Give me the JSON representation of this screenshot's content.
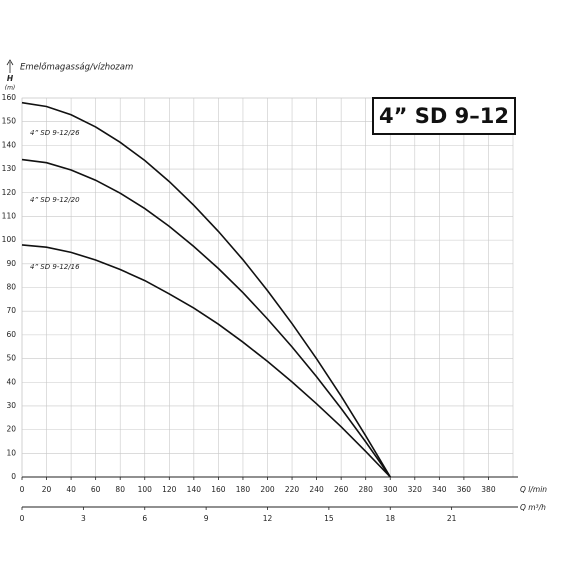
{
  "chart_data": {
    "type": "line",
    "title": "4” SD 9–12",
    "y_axis_label": "Emelőmagasság/vízhozam",
    "y_symbol": "H",
    "y_unit": "(m)",
    "x_label": "Q l/min",
    "x2_label": "Q m³/h",
    "x": [
      0,
      20,
      40,
      60,
      80,
      100,
      120,
      140,
      160,
      180,
      200,
      220,
      240,
      260,
      280,
      300
    ],
    "series": [
      {
        "name": "4” SD 9-12/26",
        "color": "#111111",
        "values": [
          158,
          156.4,
          152.9,
          147.8,
          141.3,
          133.6,
          124.7,
          114.7,
          103.7,
          91.7,
          78.7,
          64.7,
          49.9,
          34.1,
          17.4,
          0
        ]
      },
      {
        "name": "4” SD 9-12/20",
        "color": "#111111",
        "values": [
          134,
          132.7,
          129.6,
          125.3,
          119.8,
          113.3,
          105.8,
          97.3,
          88.0,
          77.8,
          66.7,
          54.9,
          42.3,
          28.9,
          14.8,
          0
        ]
      },
      {
        "name": "4” SD 9-12/16",
        "color": "#111111",
        "values": [
          98,
          97.0,
          94.8,
          91.6,
          87.6,
          82.9,
          77.3,
          71.3,
          64.5,
          56.9,
          48.8,
          40.1,
          30.9,
          21.2,
          10.8,
          0
        ]
      }
    ],
    "xlim": [
      0,
      400
    ],
    "xticks": [
      0,
      20,
      40,
      60,
      80,
      100,
      120,
      140,
      160,
      180,
      200,
      220,
      240,
      260,
      280,
      300,
      320,
      340,
      360,
      380
    ],
    "x2lim": [
      0,
      24
    ],
    "x2ticks": [
      0,
      3,
      6,
      9,
      12,
      15,
      18,
      21
    ],
    "ylim": [
      0,
      160
    ],
    "yticks": [
      0,
      10,
      20,
      30,
      40,
      50,
      60,
      70,
      80,
      90,
      100,
      110,
      120,
      130,
      140,
      150,
      160
    ],
    "grid": true
  }
}
